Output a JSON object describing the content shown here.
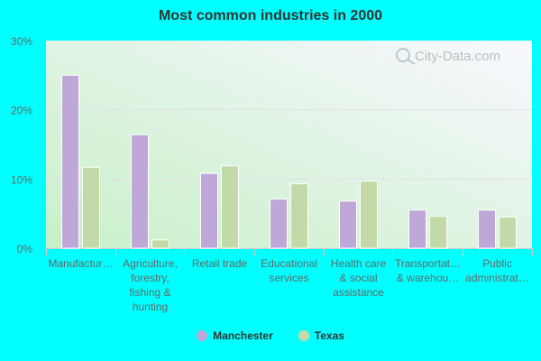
{
  "chart_data": {
    "type": "bar",
    "title": "Most common industries in 2000",
    "categories": [
      [
        "Manufactur…"
      ],
      [
        "Agriculture,",
        "forestry,",
        "fishing &",
        "hunting"
      ],
      [
        "Retail trade"
      ],
      [
        "Educational",
        "services"
      ],
      [
        "Health care",
        "& social",
        "assistance"
      ],
      [
        "Transportat…",
        "& warehou…"
      ],
      [
        "Public",
        "administrat…"
      ]
    ],
    "series": [
      {
        "name": "Manchester",
        "color": "#bfa8d8",
        "values": [
          25.0,
          16.4,
          10.8,
          7.1,
          6.8,
          5.5,
          5.5
        ]
      },
      {
        "name": "Texas",
        "color": "#c4d9a8",
        "values": [
          11.7,
          1.2,
          11.9,
          9.3,
          9.7,
          4.6,
          4.5
        ]
      }
    ],
    "ylim": [
      0,
      30
    ],
    "yticks": [
      "0%",
      "10%",
      "20%",
      "30%"
    ],
    "ytick_values": [
      0,
      10,
      20,
      30
    ],
    "grid": true,
    "legend_position": "bottom",
    "watermark": "City-Data.com"
  }
}
